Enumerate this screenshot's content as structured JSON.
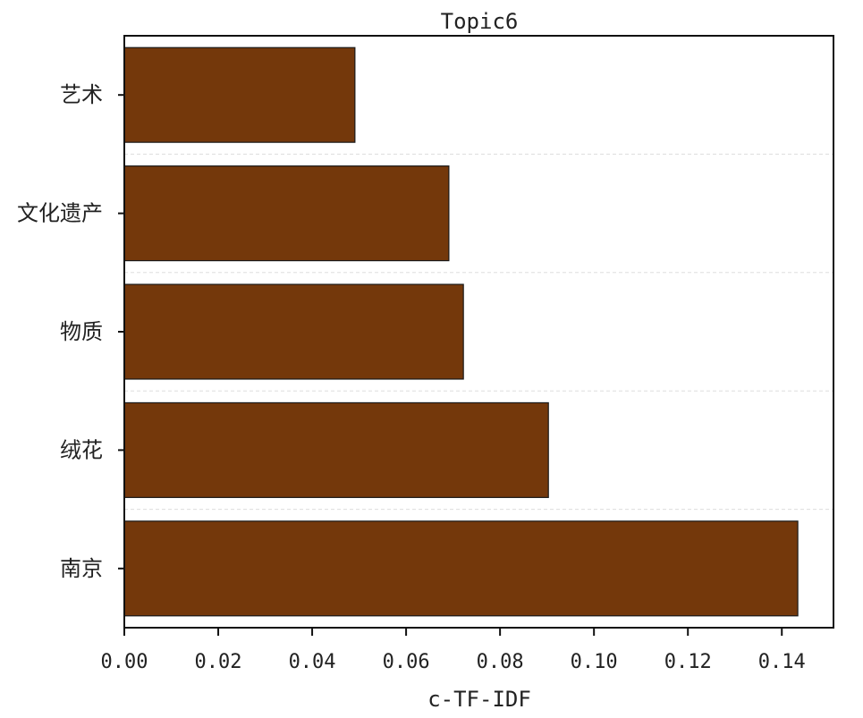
{
  "chart_data": {
    "type": "bar",
    "orientation": "horizontal",
    "title": "Topic6",
    "xlabel": "c-TF-IDF",
    "ylabel": "",
    "categories": [
      "艺术",
      "文化遗产",
      "物质",
      "绒花",
      "南京"
    ],
    "values": [
      0.0491,
      0.0691,
      0.0722,
      0.0903,
      0.1434
    ],
    "xlim": [
      0,
      0.151
    ],
    "xticks": [
      0.0,
      0.02,
      0.04,
      0.06,
      0.08,
      0.1,
      0.12,
      0.14
    ],
    "xtick_labels": [
      "0.00",
      "0.02",
      "0.04",
      "0.06",
      "0.08",
      "0.10",
      "0.12",
      "0.14"
    ],
    "grid": "horizontal dashed between bars",
    "bar_color": "#74380b",
    "edge_color": "#1a1a1a"
  }
}
